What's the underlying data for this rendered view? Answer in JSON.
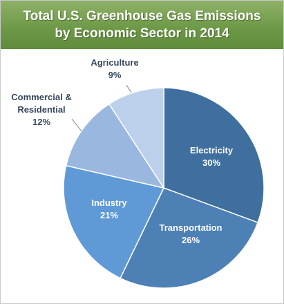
{
  "title": {
    "line1": "Total U.S. Greenhouse Gas Emissions",
    "line2": "by Economic Sector in 2014"
  },
  "chart_data": {
    "type": "pie",
    "title": "Total U.S. Greenhouse Gas Emissions by Economic Sector in 2014",
    "start_angle_deg": 0,
    "direction": "clockwise",
    "slices": [
      {
        "label": [
          "Electricity"
        ],
        "pct_label": "30%",
        "value": 30,
        "color": "#3f6f9e",
        "label_inside": true,
        "text_color": "#ffffff"
      },
      {
        "label": [
          "Transportation"
        ],
        "pct_label": "26%",
        "value": 26,
        "color": "#4d80b5",
        "label_inside": true,
        "text_color": "#ffffff"
      },
      {
        "label": [
          "Industry"
        ],
        "pct_label": "21%",
        "value": 21,
        "color": "#5f9ad6",
        "label_inside": true,
        "text_color": "#ffffff"
      },
      {
        "label": [
          "Commercial &",
          "Residential"
        ],
        "pct_label": "12%",
        "value": 12,
        "color": "#9ab7df",
        "label_inside": false,
        "text_color": "#34475e"
      },
      {
        "label": [
          "Agriculture"
        ],
        "pct_label": "9%",
        "value": 9,
        "color": "#bcd0ec",
        "label_inside": false,
        "text_color": "#34475e"
      }
    ],
    "colors": {
      "title_bar": "#6e9a48",
      "title_text": "#ffffff",
      "outside_label_text": "#34475e",
      "leader_line": "#7f7f7f"
    }
  }
}
